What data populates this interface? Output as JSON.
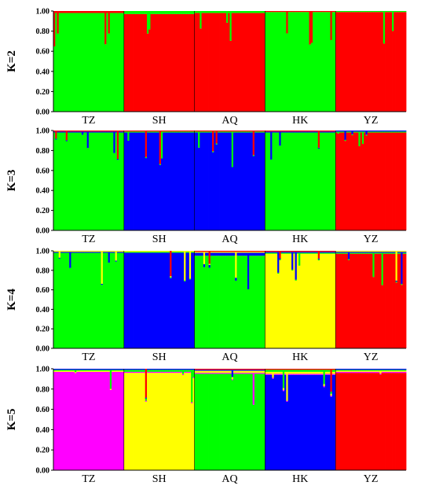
{
  "chart_data": [
    {
      "type": "bar",
      "stacked": true,
      "panel_label": "K=2",
      "categories": [
        "TZ",
        "SH",
        "AQ",
        "HK",
        "YZ"
      ],
      "yticks": [
        "0.00",
        "0.20",
        "0.40",
        "0.60",
        "0.80",
        "1.00"
      ],
      "ylim": [
        0,
        1
      ],
      "colors": [
        "#00ff00",
        "#ff0000"
      ],
      "population_clusters": {
        "TZ": 0,
        "SH": 1,
        "AQ": 1,
        "HK": 0,
        "YZ": 1
      },
      "series": [
        {
          "values": [
            0.98,
            0.03,
            0.02,
            0.99,
            0.01
          ]
        },
        {
          "values": [
            0.02,
            0.97,
            0.98,
            0.01,
            0.99
          ]
        }
      ]
    },
    {
      "type": "bar",
      "stacked": true,
      "panel_label": "K=3",
      "categories": [
        "TZ",
        "SH",
        "AQ",
        "HK",
        "YZ"
      ],
      "yticks": [
        "0.00",
        "0.20",
        "0.40",
        "0.60",
        "0.80",
        "1.00"
      ],
      "ylim": [
        0,
        1
      ],
      "colors": [
        "#00ff00",
        "#0000ff",
        "#ff0000"
      ],
      "population_clusters": {
        "TZ": 0,
        "SH": 1,
        "AQ": 1,
        "HK": 0,
        "YZ": 2
      },
      "series": [
        {
          "values": [
            0.98,
            0.01,
            0.01,
            0.98,
            0.01
          ]
        },
        {
          "values": [
            0.01,
            0.98,
            0.98,
            0.01,
            0.01
          ]
        },
        {
          "values": [
            0.01,
            0.01,
            0.01,
            0.01,
            0.98
          ]
        }
      ]
    },
    {
      "type": "bar",
      "stacked": true,
      "panel_label": "K=4",
      "categories": [
        "TZ",
        "SH",
        "AQ",
        "HK",
        "YZ"
      ],
      "yticks": [
        "0.00",
        "0.20",
        "0.40",
        "0.60",
        "0.80",
        "1.00"
      ],
      "ylim": [
        0,
        1
      ],
      "colors": [
        "#00ff00",
        "#0000ff",
        "#ffff00",
        "#ff0000"
      ],
      "population_clusters": {
        "TZ": 0,
        "SH": 1,
        "AQ": 0,
        "HK": 2,
        "YZ": 3
      },
      "series": [
        {
          "values": [
            0.98,
            0.01,
            0.95,
            0.01,
            0.01
          ]
        },
        {
          "values": [
            0.01,
            0.98,
            0.03,
            0.01,
            0.01
          ]
        },
        {
          "values": [
            0.01,
            0.01,
            0.01,
            0.97,
            0.01
          ]
        },
        {
          "values": [
            0.0,
            0.0,
            0.01,
            0.01,
            0.97
          ]
        }
      ]
    },
    {
      "type": "bar",
      "stacked": true,
      "panel_label": "K=5",
      "categories": [
        "TZ",
        "SH",
        "AQ",
        "HK",
        "YZ"
      ],
      "yticks": [
        "0.00",
        "0.20",
        "0.40",
        "0.60",
        "0.80",
        "1.00"
      ],
      "ylim": [
        0,
        1
      ],
      "colors": [
        "#ff00ff",
        "#ffff00",
        "#00ff00",
        "#0000ff",
        "#ff0000"
      ],
      "population_clusters": {
        "TZ": 0,
        "SH": 1,
        "AQ": 2,
        "HK": 3,
        "YZ": 4
      },
      "series": [
        {
          "values": [
            0.97,
            0.01,
            0.01,
            0.01,
            0.01
          ]
        },
        {
          "values": [
            0.01,
            0.96,
            0.02,
            0.02,
            0.01
          ]
        },
        {
          "values": [
            0.01,
            0.02,
            0.95,
            0.02,
            0.01
          ]
        },
        {
          "values": [
            0.01,
            0.01,
            0.01,
            0.94,
            0.01
          ]
        },
        {
          "values": [
            0.0,
            0.0,
            0.01,
            0.01,
            0.96
          ]
        }
      ]
    }
  ]
}
